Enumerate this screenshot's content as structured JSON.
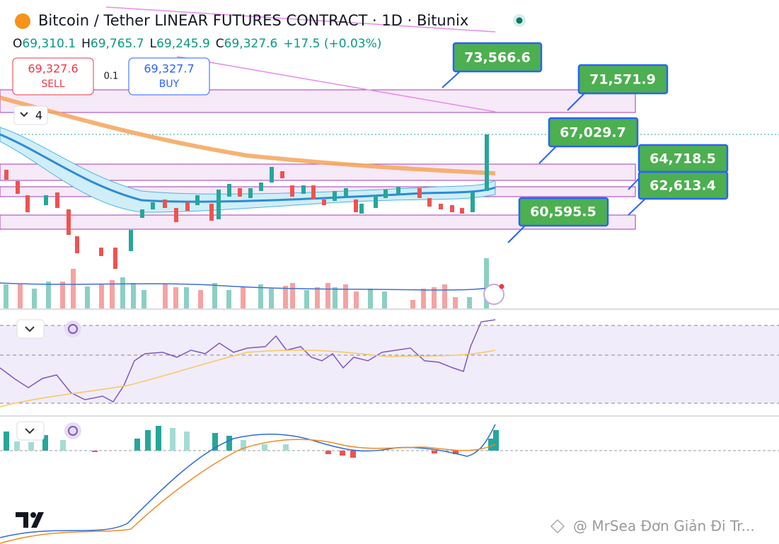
{
  "header": {
    "title": "Bitcoin / Tether LINEAR FUTURES CONTRACT · 1D · Bitunix",
    "ohlc": [
      {
        "label": "O",
        "value": "69,310.1"
      },
      {
        "label": "H",
        "value": "69,765.7"
      },
      {
        "label": "L",
        "value": "69,245.9"
      },
      {
        "label": "C",
        "value": "69,327.6"
      }
    ],
    "change": "+17.5 (+0.03%)"
  },
  "trade": {
    "sell_price": "69,327.6",
    "sell": "SELL",
    "spread": "0.1",
    "buy_price": "69,327.7",
    "buy": "BUY"
  },
  "indicators_count": "4",
  "price_labels": [
    "73,566.6",
    "71,571.9",
    "67,029.7",
    "64,718.5",
    "62,613.4",
    "60,595.5"
  ],
  "watermark": "@ MrSea Đơn Giản Đi Tr..."
}
